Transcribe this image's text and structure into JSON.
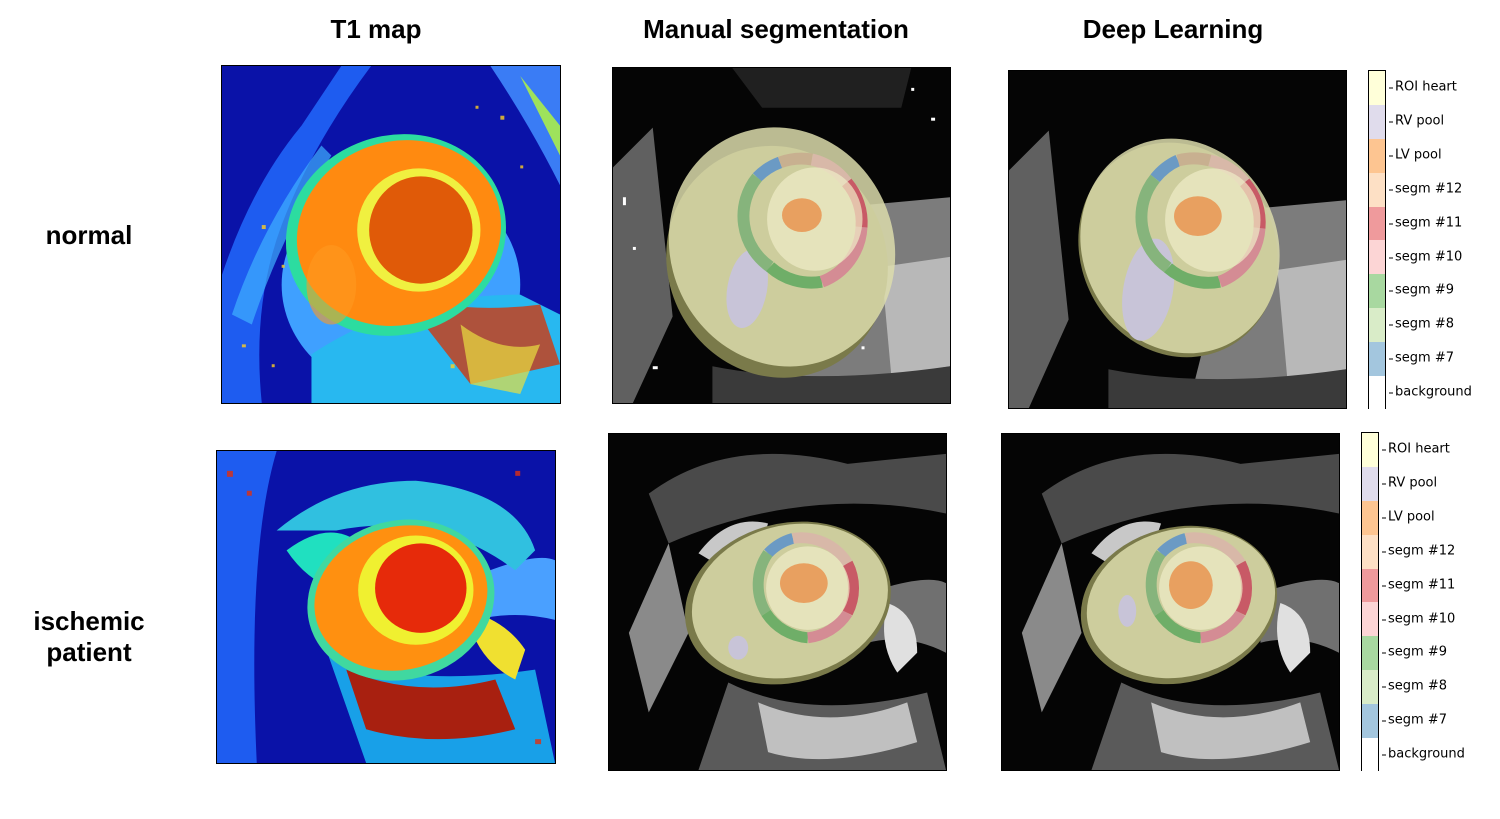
{
  "column_titles": [
    "T1 map",
    "Manual segmentation",
    "Deep Learning"
  ],
  "row_labels": [
    {
      "line1": "normal",
      "line2": ""
    },
    {
      "line1": "ischemic",
      "line2": "patient"
    }
  ],
  "legend": {
    "labels": [
      "ROI heart",
      "RV pool",
      "LV pool",
      "segm #12",
      "segm #11",
      "segm #10",
      "segm #9",
      "segm #8",
      "segm #7",
      "background"
    ],
    "colors": [
      "#ffffd9",
      "#e0dcec",
      "#fdc591",
      "#fde0c5",
      "#ef9a9c",
      "#fcd5d5",
      "#a8d8a0",
      "#d9ecc8",
      "#a3c6de",
      "#ffffff"
    ]
  }
}
